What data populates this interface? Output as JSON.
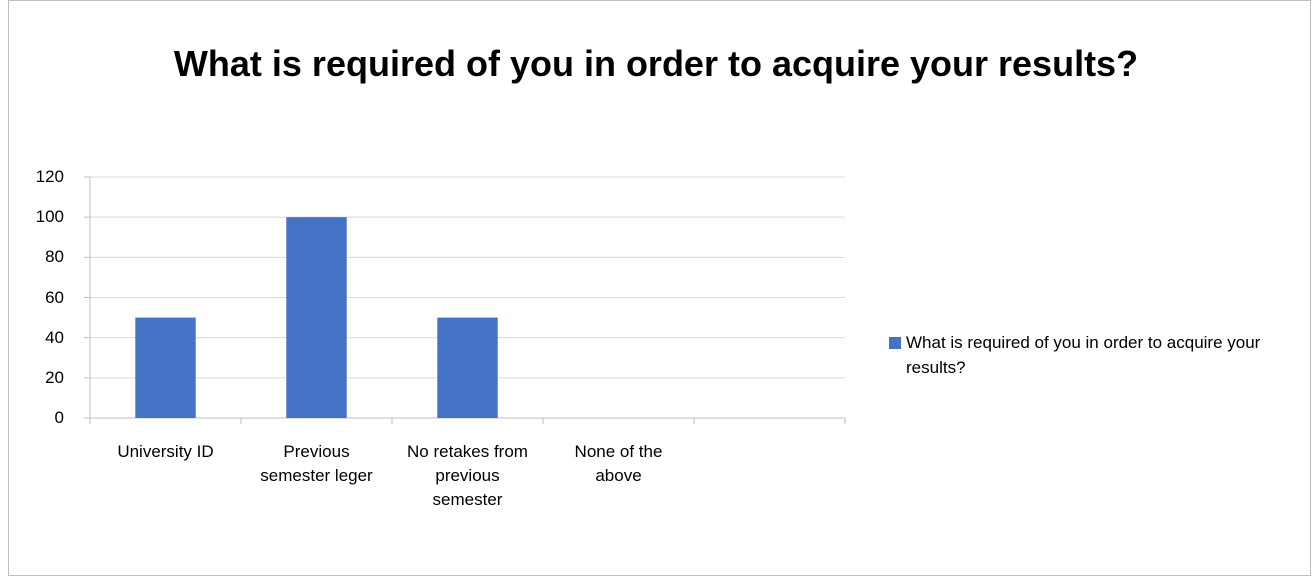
{
  "chart_data": {
    "type": "bar",
    "title": "What is required of you in order to acquire your results?",
    "categories": [
      "University ID",
      "Previous semester leger",
      "No retakes from previous semester",
      "None of the above",
      null
    ],
    "series": [
      {
        "name": "What is required of you in order to acquire your results?",
        "color": "#4472c4",
        "values": [
          50,
          100,
          50,
          0,
          null
        ]
      }
    ],
    "ylim": [
      0,
      120
    ],
    "yticks": [
      0,
      20,
      40,
      60,
      80,
      100,
      120
    ],
    "grid": true,
    "legend": "right"
  }
}
